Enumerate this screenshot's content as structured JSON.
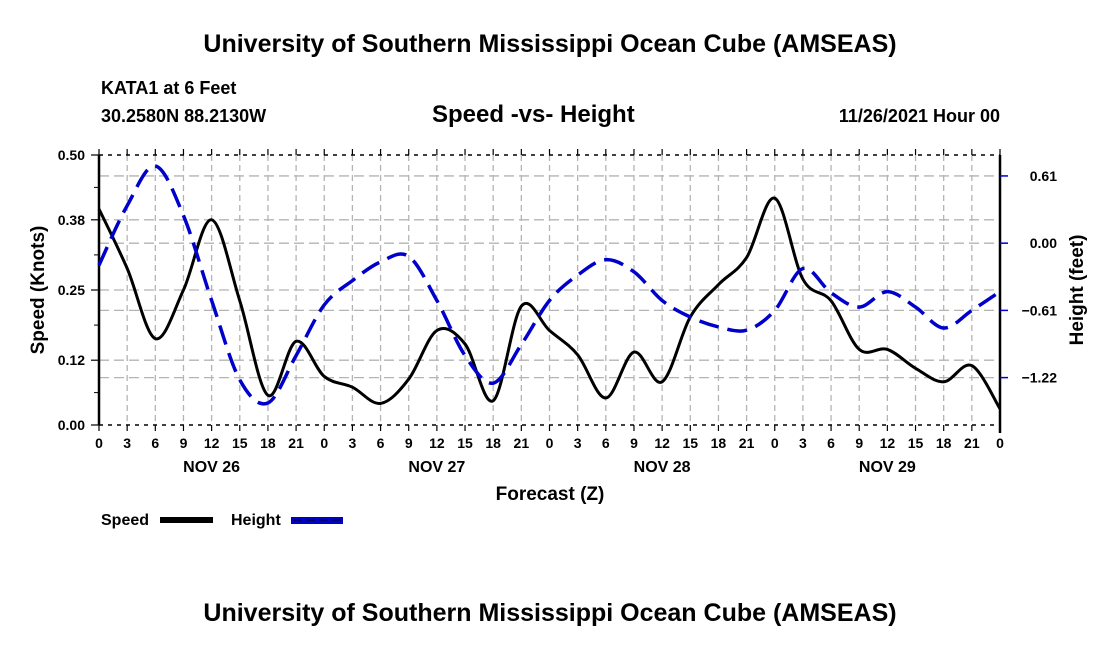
{
  "header": {
    "title_top": "University of Southern Mississippi Ocean Cube (AMSEAS)",
    "station": "KATA1 at 6 Feet",
    "coords": "30.2580N  88.2130W",
    "datetime": "11/26/2021 Hour 00",
    "title_bottom": "University of Southern Mississippi Ocean Cube (AMSEAS)"
  },
  "colors": {
    "speed": "#000000",
    "height": "#0000cc",
    "grid": "#b4b4b4"
  },
  "chart_data": {
    "type": "line",
    "title": "Speed -vs- Height",
    "xlabel": "Forecast (Z)",
    "ylabel": "Speed (Knots)",
    "y2label": "Height (feet)",
    "x_unit": "forecast hour from 11/26/2021 00Z",
    "xlim": [
      0,
      96
    ],
    "ylim": [
      0,
      0.5
    ],
    "y2lim": [
      -1.65,
      0.8
    ],
    "grid": true,
    "legend_position": "bottom-left",
    "x_tick_hours": [
      0,
      3,
      6,
      9,
      12,
      15,
      18,
      21,
      24,
      27,
      30,
      33,
      36,
      39,
      42,
      45,
      48,
      51,
      54,
      57,
      60,
      63,
      66,
      69,
      72,
      75,
      78,
      81,
      84,
      87,
      90,
      93,
      96
    ],
    "x_tick_labels": [
      "0",
      "3",
      "6",
      "9",
      "12",
      "15",
      "18",
      "21",
      "0",
      "3",
      "6",
      "9",
      "12",
      "15",
      "18",
      "21",
      "0",
      "3",
      "6",
      "9",
      "12",
      "15",
      "18",
      "21",
      "0",
      "3",
      "6",
      "9",
      "12",
      "15",
      "18",
      "21",
      "0"
    ],
    "date_labels": [
      {
        "label": "NOV 26",
        "hour": 12
      },
      {
        "label": "NOV 27",
        "hour": 36
      },
      {
        "label": "NOV 28",
        "hour": 60
      },
      {
        "label": "NOV 29",
        "hour": 84
      }
    ],
    "y_ticks": [
      0.0,
      0.12,
      0.25,
      0.38,
      0.5
    ],
    "y_tick_labels": [
      "0.00",
      "0.12",
      "0.25",
      "0.38",
      "0.50"
    ],
    "y2_ticks": [
      0.61,
      0.0,
      -0.61,
      -1.22
    ],
    "y2_tick_labels": [
      "0.61",
      "0.00",
      "−0.61",
      "−1.22"
    ],
    "x": [
      0,
      3,
      6,
      9,
      12,
      15,
      18,
      21,
      24,
      27,
      30,
      33,
      36,
      39,
      42,
      45,
      48,
      51,
      54,
      57,
      60,
      63,
      66,
      69,
      72,
      75,
      78,
      81,
      84,
      87,
      90,
      93,
      96
    ],
    "series": [
      {
        "name": "Speed",
        "axis": "left",
        "style": "solid",
        "values": [
          0.4,
          0.29,
          0.16,
          0.25,
          0.38,
          0.23,
          0.055,
          0.155,
          0.09,
          0.07,
          0.04,
          0.085,
          0.175,
          0.15,
          0.045,
          0.22,
          0.175,
          0.13,
          0.05,
          0.135,
          0.08,
          0.2,
          0.26,
          0.31,
          0.42,
          0.27,
          0.23,
          0.14,
          0.14,
          0.105,
          0.08,
          0.11,
          0.03
        ]
      },
      {
        "name": "Height",
        "axis": "right",
        "style": "dashed",
        "values": [
          -0.2,
          0.34,
          0.7,
          0.25,
          -0.52,
          -1.24,
          -1.45,
          -1.02,
          -0.56,
          -0.34,
          -0.17,
          -0.12,
          -0.52,
          -1.02,
          -1.27,
          -0.92,
          -0.52,
          -0.29,
          -0.15,
          -0.26,
          -0.52,
          -0.67,
          -0.76,
          -0.79,
          -0.61,
          -0.23,
          -0.45,
          -0.58,
          -0.44,
          -0.58,
          -0.77,
          -0.61,
          -0.44
        ]
      }
    ],
    "legend": [
      {
        "label": "Speed",
        "style": "solid"
      },
      {
        "label": "Height",
        "style": "dashed"
      }
    ]
  }
}
